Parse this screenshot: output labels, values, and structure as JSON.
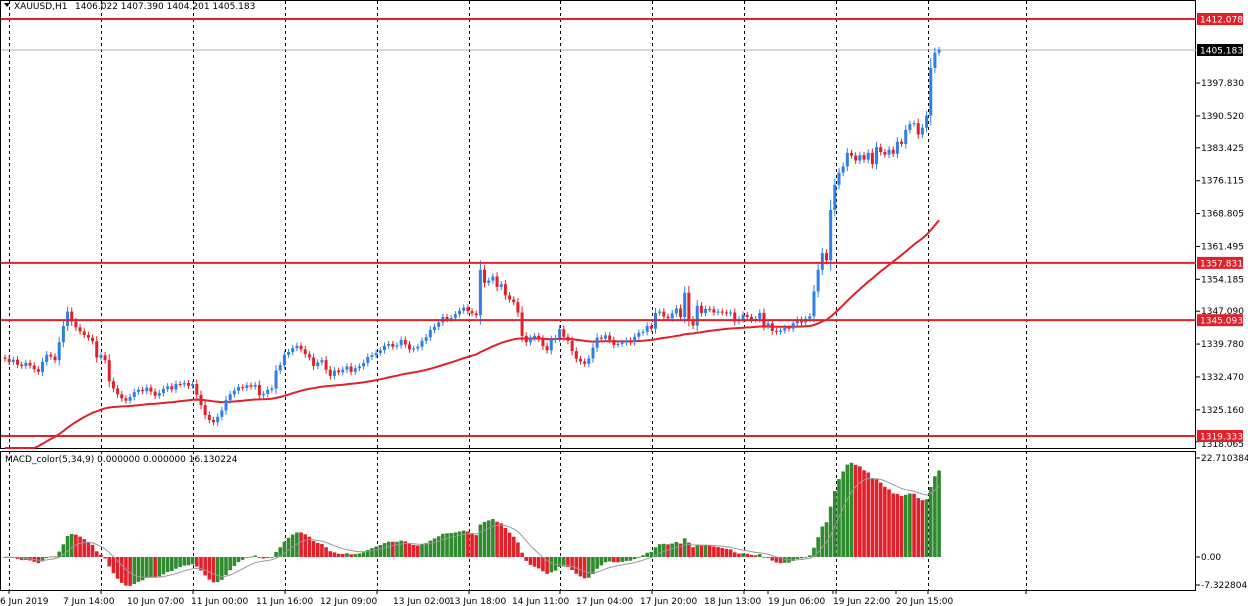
{
  "header": {
    "symbol_label": "XAUUSD,H1",
    "ohlc_label": "1406.022 1407.390 1404.201 1405.183"
  },
  "macd_header": "MACD_color(5,34,9) 0.000000 0.000000 16.130224",
  "colors": {
    "bull": "#2f7fe6",
    "bear": "#e0202a",
    "level_line": "#e0202a",
    "ma_line": "#e0202a",
    "macd_up": "#2e8b2e",
    "macd_down": "#e0202a",
    "signal": "#999999",
    "grid": "#000000"
  },
  "chart_data": [
    {
      "type": "candlestick",
      "title": "XAUUSD,H1",
      "y_ticks": [
        "1397.830",
        "1390.520",
        "1383.425",
        "1376.115",
        "1368.805",
        "1361.495",
        "1354.185",
        "1347.090",
        "1339.780",
        "1332.470",
        "1325.160",
        "1318.065"
      ],
      "ylim": [
        1318.065,
        1414.0
      ],
      "x_ticks": [
        "6 Jun 2019",
        "7 Jun 14:00",
        "10 Jun 07:00",
        "11 Jun 00:00",
        "11 Jun 16:00",
        "12 Jun 09:00",
        "13 Jun 02:00",
        "13 Jun 18:00",
        "14 Jun 11:00",
        "17 Jun 04:00",
        "17 Jun 20:00",
        "18 Jun 13:00",
        "19 Jun 06:00",
        "19 Jun 22:00",
        "20 Jun 15:00"
      ],
      "levels": [
        {
          "label": "1412.078",
          "value": 1412.078,
          "style": "red-box"
        },
        {
          "label": "1405.183",
          "value": 1405.183,
          "style": "current-price"
        },
        {
          "label": "1357.831",
          "value": 1357.831,
          "style": "red-box"
        },
        {
          "label": "1345.093",
          "value": 1345.093,
          "style": "red-box"
        },
        {
          "label": "1319.333",
          "value": 1319.333,
          "style": "red-box"
        }
      ],
      "close": [
        1336.5,
        1335.8,
        1336.3,
        1335.2,
        1334.9,
        1335.6,
        1335.0,
        1334.2,
        1333.6,
        1335.8,
        1337.4,
        1337.0,
        1336.2,
        1340.2,
        1343.8,
        1347.0,
        1344.8,
        1343.5,
        1342.6,
        1341.8,
        1341.2,
        1340.4,
        1336.8,
        1337.3,
        1336.2,
        1331.5,
        1329.9,
        1328.6,
        1327.7,
        1327.2,
        1328.0,
        1329.1,
        1329.6,
        1329.3,
        1330.1,
        1329.2,
        1328.3,
        1328.9,
        1329.8,
        1330.4,
        1329.7,
        1330.9,
        1330.8,
        1331.1,
        1330.5,
        1330.9,
        1328.5,
        1326.2,
        1324.0,
        1322.9,
        1322.4,
        1323.6,
        1325.0,
        1327.3,
        1328.6,
        1329.4,
        1330.2,
        1330.0,
        1330.6,
        1330.3,
        1330.7,
        1328.4,
        1328.7,
        1329.6,
        1329.9,
        1333.9,
        1335.1,
        1337.4,
        1338.0,
        1338.9,
        1339.4,
        1338.6,
        1337.5,
        1336.8,
        1334.9,
        1335.7,
        1336.2,
        1334.1,
        1332.7,
        1333.9,
        1333.5,
        1334.1,
        1334.8,
        1333.6,
        1334.4,
        1334.8,
        1335.6,
        1336.9,
        1337.3,
        1337.8,
        1338.4,
        1339.4,
        1339.8,
        1339.2,
        1339.5,
        1340.7,
        1339.7,
        1338.6,
        1338.8,
        1339.2,
        1340.5,
        1341.3,
        1342.9,
        1343.6,
        1344.6,
        1345.8,
        1345.3,
        1345.6,
        1346.4,
        1347.2,
        1347.9,
        1347.1,
        1346.6,
        1346.2,
        1356.3,
        1353.4,
        1353.9,
        1354.8,
        1352.5,
        1353.1,
        1350.6,
        1349.7,
        1349.1,
        1346.8,
        1341.6,
        1340.2,
        1341.1,
        1341.6,
        1340.9,
        1339.3,
        1338.4,
        1340.7,
        1341.1,
        1343.1,
        1341.4,
        1340.5,
        1338.2,
        1336.5,
        1335.9,
        1335.4,
        1336.6,
        1339.0,
        1341.2,
        1341.0,
        1341.7,
        1340.7,
        1339.6,
        1339.8,
        1340.1,
        1340.6,
        1340.2,
        1341.4,
        1342.3,
        1342.5,
        1343.8,
        1343.2,
        1346.7,
        1347.0,
        1345.9,
        1345.5,
        1346.6,
        1347.7,
        1345.8,
        1351.2,
        1345.2,
        1343.9,
        1348.3,
        1346.7,
        1347.6,
        1347.5,
        1346.8,
        1347.0,
        1346.8,
        1346.6,
        1346.8,
        1344.8,
        1345.3,
        1346.3,
        1345.8,
        1345.2,
        1345.4,
        1346.7,
        1343.8,
        1344.4,
        1342.7,
        1342.5,
        1342.8,
        1343.4,
        1343.2,
        1344.4,
        1345.2,
        1344.6,
        1345.4,
        1346.0,
        1351.5,
        1356.3,
        1360.0,
        1358.4,
        1369.6,
        1375.2,
        1377.9,
        1379.3,
        1382.3,
        1381.7,
        1380.6,
        1381.8,
        1380.8,
        1382.3,
        1379.8,
        1383.6,
        1382.5,
        1381.9,
        1383.0,
        1382.1,
        1384.8,
        1384.3,
        1387.4,
        1388.7,
        1388.9,
        1386.4,
        1387.9,
        1390.6,
        1401.2,
        1404.6,
        1405.183
      ],
      "macd_ylim": [
        -7.322804,
        22.710384
      ],
      "macd_ticks": [
        "22.710384",
        "0.00",
        "-7.322804"
      ]
    }
  ]
}
